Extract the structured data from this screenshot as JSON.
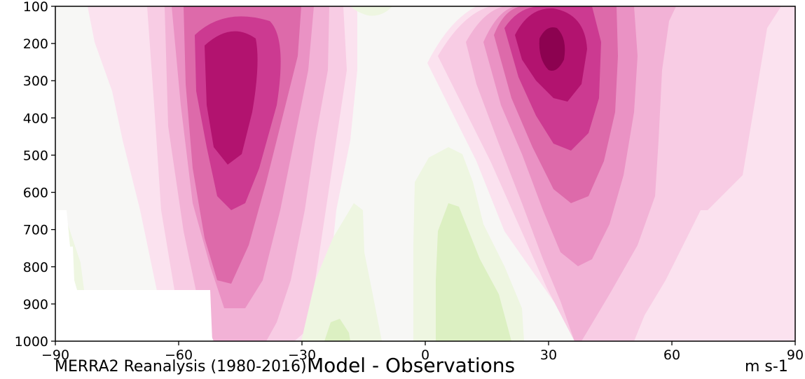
{
  "chart_data": {
    "type": "contour",
    "title": "Model - Observations",
    "source_label": "MERRA2 Reanalysis (1980-2016)",
    "units_label": "m s-1",
    "xlabel": "",
    "ylabel": "",
    "xlim": [
      -90,
      90
    ],
    "ylim": [
      1000,
      100
    ],
    "x_ticks": [
      -90,
      -60,
      -30,
      0,
      30,
      60,
      90
    ],
    "x_tick_labels": [
      "−90",
      "−60",
      "−30",
      "0",
      "30",
      "60",
      "90"
    ],
    "y_ticks": [
      100,
      200,
      300,
      400,
      500,
      600,
      700,
      800,
      900,
      1000
    ],
    "y_tick_labels": [
      "100",
      "200",
      "300",
      "400",
      "500",
      "600",
      "700",
      "800",
      "900",
      "1000"
    ],
    "grid": false,
    "colormap": "PiYG (pink = positive, green = negative)",
    "colors": {
      "pos": [
        "#fbe2ef",
        "#f8cce4",
        "#f2b2d6",
        "#ea92c4",
        "#dd6aaa",
        "#cc3a91",
        "#b2136f",
        "#8c0250"
      ],
      "neutral": "#f7f7f5",
      "neg": [
        "#eef6e1",
        "#dcf0c2"
      ]
    },
    "features": [
      {
        "name": "southern hemisphere jet maximum",
        "lat": -45,
        "pressure": 250,
        "sign": "positive"
      },
      {
        "name": "northern hemisphere jet maximum",
        "lat": 30,
        "pressure": 200,
        "sign": "positive"
      },
      {
        "name": "equatorial negative region",
        "lat": 8,
        "pressure": 850,
        "sign": "negative"
      },
      {
        "name": "southern subtropical negative region",
        "lat": -20,
        "pressure": 900,
        "sign": "negative"
      },
      {
        "name": "missing data (below surface)",
        "lat": -80,
        "pressure": 950,
        "sign": "masked"
      }
    ]
  }
}
